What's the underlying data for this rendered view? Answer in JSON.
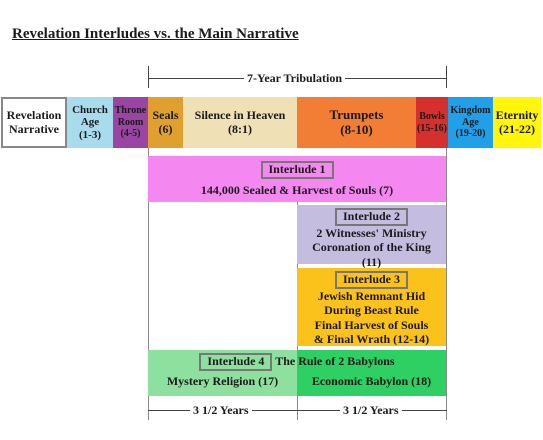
{
  "title": "Revelation Interludes vs. the Main Narrative",
  "tribulation_label": "7-Year Tribulation",
  "half_left_label": "3 1/2 Years",
  "half_right_label": "3 1/2 Years",
  "timeline": [
    {
      "line1": "Revelation",
      "line2": "Narrative",
      "color": "#ffffff"
    },
    {
      "line1": "Church",
      "line2": "Age",
      "line3": "(1-3)",
      "color": "#a8dcec"
    },
    {
      "line1": "Throne",
      "line2": "Room",
      "line3": "(4-5)",
      "color": "#9a45a3"
    },
    {
      "line1": "Seals",
      "line2": "(6)",
      "color": "#e0a030"
    },
    {
      "line1": "Silence in Heaven",
      "line2": "(8:1)",
      "color": "#efe0b5"
    },
    {
      "line1": "Trumpets",
      "line2": "(8-10)",
      "color": "#f27e36"
    },
    {
      "line1": "Bowls",
      "line2": "(15-16)",
      "color": "#d6302d"
    },
    {
      "line1": "Kingdom",
      "line2": "Age",
      "line3": "(19-20)",
      "color": "#20a0e8"
    },
    {
      "line1": "Eternity",
      "line2": "(21-22)",
      "color": "#fff60a"
    }
  ],
  "interludes": [
    {
      "tag": "Interlude 1",
      "text": "144,000 Sealed & Harvest of Souls (7)",
      "color": "#f487f0"
    },
    {
      "tag": "Interlude 2",
      "lines": [
        "2 Witnesses' Ministry",
        "Coronation of the King",
        "(11)"
      ],
      "color": "#c4bde0"
    },
    {
      "tag": "Interlude 3",
      "lines": [
        "Jewish Remnant Hid",
        "During Beast Rule",
        "Final Harvest of Souls",
        "& Final Wrath (12-14)"
      ],
      "color": "#fcc21c"
    },
    {
      "tag": "Interlude 4",
      "heading": "The Rule of 2 Babylons",
      "left_text": "Mystery Religion (17)",
      "right_text": "Economic Babylon (18)",
      "left_color": "#8de09e",
      "right_color": "#2ed064"
    }
  ]
}
